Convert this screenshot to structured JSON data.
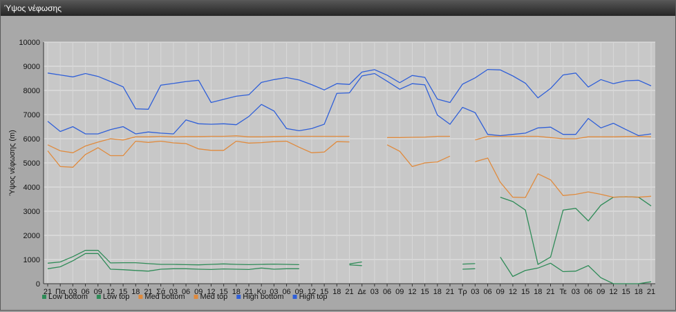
{
  "window": {
    "title": "Ύψος νέφωσης"
  },
  "chart_data": {
    "type": "line",
    "title": "",
    "ylabel": "Ύψος νέφωσης (m)",
    "xlabel": "",
    "ylim": [
      0,
      10000
    ],
    "yticks": [
      0,
      1000,
      2000,
      3000,
      4000,
      5000,
      6000,
      7000,
      8000,
      9000,
      10000
    ],
    "grid": true,
    "legend_position": "bottom-left",
    "categories": [
      "21",
      "Πα",
      "03",
      "06",
      "09",
      "12",
      "15",
      "18",
      "21",
      "Σά",
      "03",
      "06",
      "09",
      "12",
      "15",
      "18",
      "21",
      "Κυ",
      "03",
      "06",
      "09",
      "12",
      "15",
      "18",
      "21",
      "Δε",
      "03",
      "06",
      "09",
      "12",
      "15",
      "18",
      "21",
      "Τρ",
      "03",
      "06",
      "09",
      "12",
      "15",
      "18",
      "21",
      "Τε",
      "03",
      "06",
      "09",
      "12",
      "15",
      "18",
      "21"
    ],
    "series": [
      {
        "name": "Low bottom",
        "color": "#2e8b57",
        "values": [
          620,
          700,
          950,
          1250,
          1250,
          600,
          580,
          550,
          520,
          600,
          620,
          620,
          600,
          590,
          610,
          600,
          590,
          650,
          600,
          620,
          620,
          null,
          null,
          null,
          780,
          750,
          null,
          null,
          null,
          null,
          null,
          null,
          null,
          600,
          620,
          null,
          1100,
          300,
          550,
          650,
          850,
          500,
          520,
          750,
          250,
          0,
          0,
          0,
          80
        ]
      },
      {
        "name": "Low top",
        "color": "#2e8b57",
        "values": [
          850,
          900,
          1120,
          1380,
          1380,
          860,
          870,
          870,
          830,
          800,
          800,
          790,
          780,
          800,
          820,
          800,
          790,
          800,
          810,
          800,
          790,
          null,
          null,
          null,
          820,
          900,
          null,
          null,
          null,
          null,
          null,
          null,
          null,
          810,
          830,
          null,
          3580,
          3400,
          3050,
          800,
          1100,
          3050,
          3120,
          2600,
          3250,
          3580,
          3600,
          3580,
          3220
        ]
      },
      {
        "name": "Med bottom",
        "color": "#e08a3c",
        "values": [
          5500,
          4850,
          4820,
          5350,
          5630,
          5300,
          5300,
          5900,
          5850,
          5900,
          5830,
          5800,
          5580,
          5520,
          5520,
          5900,
          5820,
          5840,
          5880,
          5900,
          5650,
          5420,
          5450,
          5880,
          5870,
          null,
          null,
          5750,
          5480,
          4850,
          5000,
          5040,
          5280,
          null,
          5050,
          5200,
          4200,
          3580,
          3570,
          4550,
          4300,
          3650,
          3700,
          3800,
          3700,
          3580,
          3600,
          3580,
          3620
        ]
      },
      {
        "name": "Med top",
        "color": "#e08a3c",
        "values": [
          5750,
          5500,
          5420,
          5700,
          5860,
          6000,
          5950,
          6080,
          6080,
          6100,
          6080,
          6090,
          6090,
          6100,
          6100,
          6120,
          6080,
          6080,
          6090,
          6100,
          6100,
          6100,
          6100,
          6100,
          6100,
          null,
          null,
          6050,
          6050,
          6060,
          6070,
          6100,
          6100,
          null,
          5950,
          6100,
          6100,
          6100,
          6100,
          6100,
          6050,
          6000,
          6000,
          6080,
          6080,
          6080,
          6090,
          6100,
          6080
        ]
      },
      {
        "name": "High bottom",
        "color": "#2f5fd8",
        "values": [
          6720,
          6300,
          6500,
          6200,
          6200,
          6380,
          6500,
          6200,
          6280,
          6230,
          6200,
          6780,
          6620,
          6600,
          6620,
          6580,
          6920,
          7420,
          7150,
          6420,
          6330,
          6420,
          6600,
          7880,
          7900,
          8600,
          8700,
          8380,
          8050,
          8280,
          8230,
          6980,
          6600,
          7300,
          7080,
          6180,
          6130,
          6180,
          6230,
          6450,
          6480,
          6180,
          6180,
          6840,
          6450,
          6640,
          6380,
          6130,
          6200
        ]
      },
      {
        "name": "High top",
        "color": "#2f5fd8",
        "values": [
          8720,
          8640,
          8560,
          8700,
          8580,
          8370,
          8150,
          7240,
          7220,
          8220,
          8290,
          8370,
          8420,
          7500,
          7630,
          7760,
          7820,
          8330,
          8450,
          8530,
          8430,
          8240,
          8020,
          8280,
          8250,
          8760,
          8860,
          8630,
          8320,
          8620,
          8540,
          7640,
          7500,
          8260,
          8520,
          8870,
          8850,
          8600,
          8300,
          7690,
          8080,
          8640,
          8720,
          8140,
          8450,
          8280,
          8400,
          8420,
          8190
        ]
      }
    ]
  }
}
